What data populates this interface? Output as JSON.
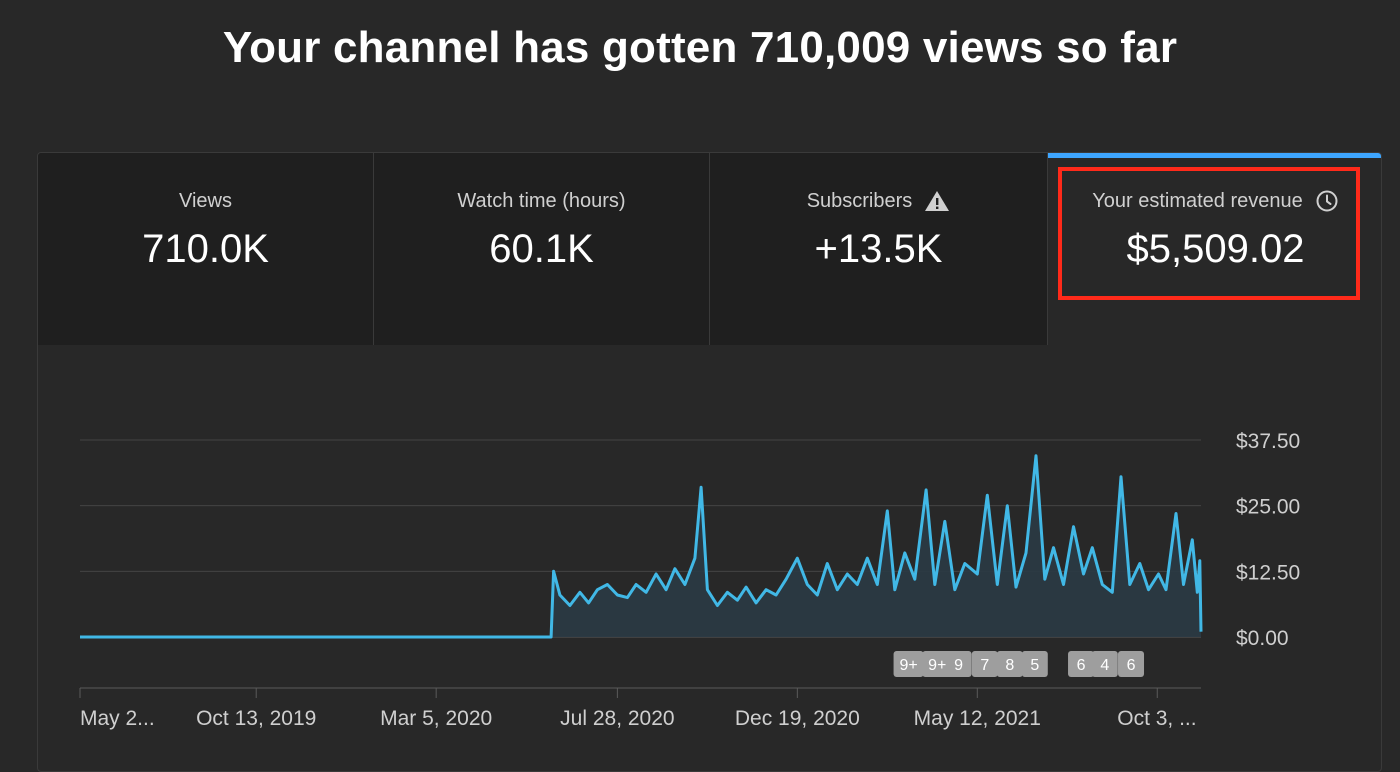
{
  "headline": "Your channel has gotten 710,009 views so far",
  "tabs": [
    {
      "label": "Views",
      "value": "710.0K"
    },
    {
      "label": "Watch time (hours)",
      "value": "60.1K"
    },
    {
      "label": "Subscribers",
      "value": "+13.5K",
      "icon": "warning-icon"
    },
    {
      "label": "Your estimated revenue",
      "value": "$5,509.02",
      "icon": "clock-icon",
      "selected": true
    }
  ],
  "colors": {
    "line": "#3ea6ff",
    "series_line": "#41b8e6",
    "area": "#2a3a44",
    "highlight": "#ff2a1a",
    "badge": "#9e9e9e"
  },
  "chart_data": {
    "type": "line",
    "title": "",
    "xlabel": "",
    "ylabel": "",
    "y_axis_position": "right",
    "ylim": [
      0,
      37.5
    ],
    "yticks": [
      "$37.50",
      "$25.00",
      "$12.50",
      "$0.00"
    ],
    "ytick_values": [
      37.5,
      25.0,
      12.5,
      0.0
    ],
    "xlim": [
      "2019-05-25",
      "2021-11-07"
    ],
    "xticks": [
      {
        "label": "May 2...",
        "date": "2019-05-25"
      },
      {
        "label": "Oct 13, 2019",
        "date": "2019-10-13"
      },
      {
        "label": "Mar 5, 2020",
        "date": "2020-03-05"
      },
      {
        "label": "Jul 28, 2020",
        "date": "2020-07-28"
      },
      {
        "label": "Dec 19, 2020",
        "date": "2020-12-19"
      },
      {
        "label": "May 12, 2021",
        "date": "2021-05-12"
      },
      {
        "label": "Oct 3, ...",
        "date": "2021-10-03"
      }
    ],
    "grid": true,
    "fill_area": true,
    "series": [
      {
        "points": [
          [
            "2019-05-25",
            0
          ],
          [
            "2020-06-05",
            0
          ],
          [
            "2020-06-07",
            12.5
          ],
          [
            "2020-06-12",
            8
          ],
          [
            "2020-06-20",
            6
          ],
          [
            "2020-06-28",
            8.5
          ],
          [
            "2020-07-05",
            6.5
          ],
          [
            "2020-07-12",
            9
          ],
          [
            "2020-07-20",
            10
          ],
          [
            "2020-07-28",
            8
          ],
          [
            "2020-08-05",
            7.5
          ],
          [
            "2020-08-12",
            10
          ],
          [
            "2020-08-20",
            8.5
          ],
          [
            "2020-08-28",
            12
          ],
          [
            "2020-09-05",
            9
          ],
          [
            "2020-09-12",
            13
          ],
          [
            "2020-09-20",
            10
          ],
          [
            "2020-09-28",
            15
          ],
          [
            "2020-10-03",
            28.5
          ],
          [
            "2020-10-08",
            9
          ],
          [
            "2020-10-16",
            6
          ],
          [
            "2020-10-24",
            8.5
          ],
          [
            "2020-11-01",
            7
          ],
          [
            "2020-11-08",
            9.5
          ],
          [
            "2020-11-16",
            6.5
          ],
          [
            "2020-11-24",
            9
          ],
          [
            "2020-12-02",
            8
          ],
          [
            "2020-12-10",
            11
          ],
          [
            "2020-12-19",
            15
          ],
          [
            "2020-12-27",
            10
          ],
          [
            "2021-01-04",
            8
          ],
          [
            "2021-01-12",
            14
          ],
          [
            "2021-01-20",
            9
          ],
          [
            "2021-01-28",
            12
          ],
          [
            "2021-02-05",
            10
          ],
          [
            "2021-02-13",
            15
          ],
          [
            "2021-02-21",
            10
          ],
          [
            "2021-03-01",
            24
          ],
          [
            "2021-03-07",
            9
          ],
          [
            "2021-03-15",
            16
          ],
          [
            "2021-03-23",
            11
          ],
          [
            "2021-04-01",
            28
          ],
          [
            "2021-04-08",
            10
          ],
          [
            "2021-04-16",
            22
          ],
          [
            "2021-04-24",
            9
          ],
          [
            "2021-05-02",
            14
          ],
          [
            "2021-05-12",
            12
          ],
          [
            "2021-05-20",
            27
          ],
          [
            "2021-05-28",
            10
          ],
          [
            "2021-06-05",
            25
          ],
          [
            "2021-06-12",
            9.5
          ],
          [
            "2021-06-20",
            16
          ],
          [
            "2021-06-28",
            34.5
          ],
          [
            "2021-07-05",
            11
          ],
          [
            "2021-07-12",
            17
          ],
          [
            "2021-07-20",
            10
          ],
          [
            "2021-07-28",
            21
          ],
          [
            "2021-08-05",
            12
          ],
          [
            "2021-08-12",
            17
          ],
          [
            "2021-08-20",
            10
          ],
          [
            "2021-08-28",
            8.5
          ],
          [
            "2021-09-04",
            30.5
          ],
          [
            "2021-09-11",
            10
          ],
          [
            "2021-09-19",
            14
          ],
          [
            "2021-09-26",
            9
          ],
          [
            "2021-10-04",
            12
          ],
          [
            "2021-10-10",
            9
          ],
          [
            "2021-10-18",
            23.5
          ],
          [
            "2021-10-24",
            10
          ],
          [
            "2021-10-31",
            18.5
          ],
          [
            "2021-11-04",
            8.5
          ],
          [
            "2021-11-06",
            14.5
          ],
          [
            "2021-11-07",
            1
          ]
        ]
      }
    ],
    "annotations": [
      {
        "label": "9+",
        "date": "2021-03-18"
      },
      {
        "label": "9+",
        "date": "2021-04-10"
      },
      {
        "label": "9",
        "date": "2021-04-27"
      },
      {
        "label": "7",
        "date": "2021-05-18"
      },
      {
        "label": "8",
        "date": "2021-06-07"
      },
      {
        "label": "5",
        "date": "2021-06-27"
      },
      {
        "label": "6",
        "date": "2021-08-03"
      },
      {
        "label": "4",
        "date": "2021-08-22"
      },
      {
        "label": "6",
        "date": "2021-09-12"
      }
    ]
  }
}
